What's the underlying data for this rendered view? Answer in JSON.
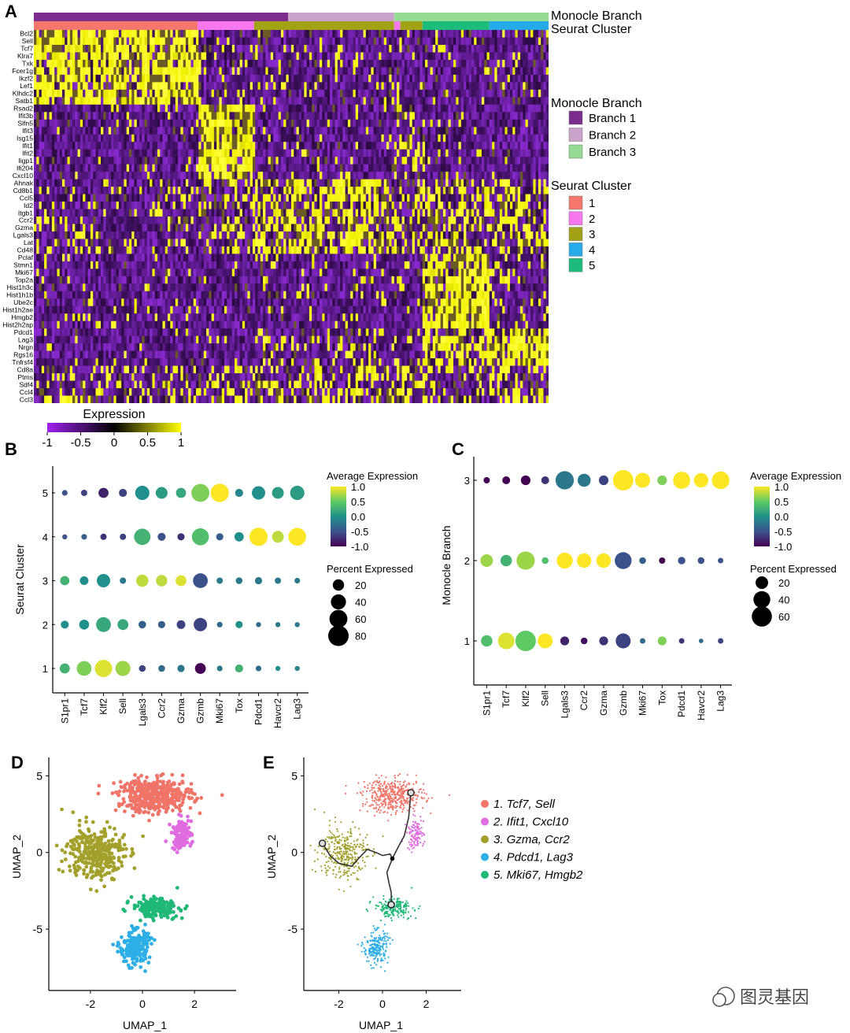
{
  "figure": {
    "panel_labels": [
      "A",
      "B",
      "C",
      "D",
      "E"
    ],
    "watermark": "图灵基因"
  },
  "colors": {
    "branch": [
      "#7c2d8e",
      "#c9a3cc",
      "#96db94"
    ],
    "cluster": [
      "#f4766d",
      "#f777ee",
      "#a2a216",
      "#26abe8",
      "#1dbc7c"
    ],
    "umap": [
      "#f07468",
      "#e06be0",
      "#a3a02c",
      "#2eaee6",
      "#20b878"
    ],
    "heat_low": "#a020f0",
    "heat_mid": "#000000",
    "heat_high": "#ffff00",
    "viridis": [
      "#440154",
      "#3b528b",
      "#21908c",
      "#5dc963",
      "#fde725"
    ]
  },
  "chart_data": [
    {
      "id": "A",
      "type": "heatmap",
      "title": "",
      "genes": [
        "Bcl2",
        "Sell",
        "Tcf7",
        "Klra7",
        "Txk",
        "Fcer1g",
        "Ikzf2",
        "Lef1",
        "Klhdc2",
        "Satb1",
        "Rsad2",
        "Ifit3b",
        "Slfn5",
        "Ifit3",
        "Isg15",
        "Ifit1",
        "Ifit2",
        "Iigp1",
        "Ifi204",
        "Cxcl10",
        "Ahnak",
        "Cd8b1",
        "Ccl5",
        "Id2",
        "Itgb1",
        "Ccr2",
        "Gzma",
        "Lgals3",
        "Lat",
        "Cd48",
        "Pclaf",
        "Stmn1",
        "Mki67",
        "Top2a",
        "Hist1h3c",
        "Hist1h1b",
        "Ube2c",
        "Hist1h2ae",
        "Hmgb2",
        "Hist2h2ap",
        "Pdcd1",
        "Lag3",
        "Nrgn",
        "Rgs16",
        "Tnfrsf4",
        "Cd8a",
        "Ptms",
        "Sdf4",
        "Ccl4",
        "Ccl3"
      ],
      "annotation_rows": [
        "Monocle Branch",
        "Seurat Cluster"
      ],
      "legend_branch_title": "Monocle Branch",
      "legend_branches": [
        "Branch 1",
        "Branch 2",
        "Branch 3"
      ],
      "legend_cluster_title": "Seurat Cluster",
      "legend_clusters": [
        "1",
        "2",
        "3",
        "4",
        "5"
      ],
      "colorbar_title": "Expression",
      "colorbar_ticks": [
        "-1",
        "-0.5",
        "0",
        "0.5",
        "1"
      ],
      "branch_segments": [
        {
          "branch": 1,
          "from": 0.0,
          "to": 0.494
        },
        {
          "branch": 2,
          "from": 0.494,
          "to": 0.7
        },
        {
          "branch": 3,
          "from": 0.7,
          "to": 1.0
        }
      ],
      "cluster_segments": [
        {
          "cluster": 1,
          "from": 0.0,
          "to": 0.318
        },
        {
          "cluster": 2,
          "from": 0.318,
          "to": 0.428
        },
        {
          "cluster": 3,
          "from": 0.428,
          "to": 0.7
        },
        {
          "cluster": 2,
          "from": 0.7,
          "to": 0.712
        },
        {
          "cluster": 3,
          "from": 0.712,
          "to": 0.755
        },
        {
          "cluster": 5,
          "from": 0.755,
          "to": 0.885
        },
        {
          "cluster": 4,
          "from": 0.885,
          "to": 1.0
        }
      ]
    },
    {
      "id": "B",
      "type": "scatter",
      "subtype": "dot-plot",
      "xlabel": "",
      "ylabel": "Seurat Cluster",
      "categories": [
        "S1pr1",
        "Tcf7",
        "Klf2",
        "Sell",
        "Lgals3",
        "Ccr2",
        "Gzma",
        "Gzmb",
        "Mki67",
        "Tox",
        "Pdcd1",
        "Havcr2",
        "Lag3"
      ],
      "groups": [
        "1",
        "2",
        "3",
        "4",
        "5"
      ],
      "avg_expression": [
        [
          0.3,
          0.6,
          0.9,
          0.7,
          -0.6,
          -0.3,
          -0.2,
          -1.0,
          -0.2,
          0.3,
          -0.3,
          0.0,
          -0.1
        ],
        [
          0.0,
          0.0,
          0.2,
          0.2,
          -0.4,
          -0.4,
          -0.6,
          -0.6,
          -0.3,
          0.0,
          -0.3,
          -0.2,
          -0.2
        ],
        [
          0.3,
          0.0,
          0.0,
          -0.2,
          0.8,
          0.8,
          0.9,
          -0.5,
          -0.2,
          -0.2,
          -0.2,
          -0.2,
          -0.2
        ],
        [
          -0.5,
          -0.4,
          -0.7,
          -0.6,
          0.3,
          -0.5,
          -0.7,
          0.4,
          -0.4,
          0.0,
          1.0,
          0.8,
          1.0
        ],
        [
          -0.5,
          -0.6,
          -0.8,
          -0.6,
          0.0,
          0.1,
          0.2,
          0.6,
          1.0,
          -0.1,
          0.0,
          0.1,
          0.1
        ]
      ],
      "pct_expressed": [
        [
          15,
          38,
          55,
          40,
          5,
          5,
          6,
          18,
          3,
          8,
          3,
          2,
          2
        ],
        [
          8,
          14,
          38,
          18,
          7,
          6,
          10,
          30,
          3,
          6,
          2,
          2,
          2
        ],
        [
          12,
          10,
          30,
          4,
          24,
          20,
          18,
          38,
          4,
          5,
          6,
          4,
          3
        ],
        [
          2,
          3,
          4,
          4,
          48,
          8,
          6,
          52,
          6,
          12,
          62,
          22,
          58
        ],
        [
          3,
          4,
          15,
          8,
          35,
          22,
          15,
          60,
          62,
          8,
          30,
          22,
          35
        ]
      ],
      "color_title": "Average Expression",
      "color_ticks": [
        "1.0",
        "0.5",
        "0.0",
        "-0.5",
        "-1.0"
      ],
      "size_title": "Percent Expressed",
      "size_ticks": [
        "20",
        "40",
        "60",
        "80"
      ],
      "color_range": [
        -1.0,
        1.0
      ]
    },
    {
      "id": "C",
      "type": "scatter",
      "subtype": "dot-plot",
      "xlabel": "",
      "ylabel": "Monocle Branch",
      "categories": [
        "S1pr1",
        "Tcf7",
        "Klf2",
        "Sell",
        "Lgals3",
        "Ccr2",
        "Gzma",
        "Gzmb",
        "Mki67",
        "Tox",
        "Pdcd1",
        "Havcr2",
        "Lag3"
      ],
      "groups": [
        "1",
        "2",
        "3"
      ],
      "avg_expression": [
        [
          0.4,
          0.9,
          0.5,
          1.0,
          -0.8,
          -0.9,
          -0.7,
          -0.6,
          -0.3,
          0.6,
          -0.7,
          -0.3,
          -0.6
        ],
        [
          0.7,
          0.3,
          0.7,
          0.4,
          1.0,
          1.0,
          1.0,
          -0.5,
          -0.4,
          -1.0,
          -0.5,
          -0.5,
          -0.5
        ],
        [
          -1.0,
          -1.0,
          -1.2,
          -0.7,
          -0.2,
          -0.2,
          -0.6,
          1.0,
          1.0,
          0.6,
          1.0,
          1.0,
          1.0
        ]
      ],
      "pct_expressed": [
        [
          16,
          38,
          62,
          30,
          8,
          4,
          8,
          30,
          2,
          8,
          2,
          1,
          2
        ],
        [
          20,
          16,
          48,
          4,
          36,
          28,
          28,
          40,
          4,
          3,
          5,
          4,
          2
        ],
        [
          3,
          6,
          10,
          6,
          48,
          22,
          10,
          62,
          30,
          10,
          42,
          28,
          44
        ]
      ],
      "color_title": "Average Expression",
      "color_ticks": [
        "1.0",
        "0.5",
        "0.0",
        "-0.5",
        "-1.0"
      ],
      "size_title": "Percent Expressed",
      "size_ticks": [
        "20",
        "40",
        "60"
      ],
      "color_range": [
        -1.0,
        1.0
      ]
    },
    {
      "id": "D",
      "type": "scatter",
      "xlabel": "UMAP_1",
      "ylabel": "UMAP_2",
      "xlim": [
        -3.6,
        3.6
      ],
      "ylim": [
        -9.0,
        6.2
      ],
      "xticks": [
        -2,
        0,
        2
      ],
      "yticks": [
        5,
        0,
        -5
      ],
      "clusters": [
        {
          "id": 1,
          "center": [
            0.5,
            3.7
          ],
          "spread": [
            1.3,
            1.0
          ],
          "count": 420
        },
        {
          "id": 2,
          "center": [
            1.5,
            1.2
          ],
          "spread": [
            0.35,
            0.9
          ],
          "count": 110
        },
        {
          "id": 3,
          "center": [
            -1.8,
            0.0
          ],
          "spread": [
            1.0,
            1.6
          ],
          "count": 330
        },
        {
          "id": 4,
          "center": [
            -0.3,
            -6.2
          ],
          "spread": [
            0.5,
            1.0
          ],
          "count": 210
        },
        {
          "id": 5,
          "center": [
            0.5,
            -3.6
          ],
          "spread": [
            0.8,
            0.55
          ],
          "count": 210
        }
      ]
    },
    {
      "id": "E",
      "type": "scatter",
      "subtype": "trajectory",
      "xlabel": "UMAP_1",
      "ylabel": "UMAP_2",
      "xlim": [
        -3.6,
        3.6
      ],
      "ylim": [
        -9.0,
        6.2
      ],
      "xticks": [
        -2,
        0,
        2
      ],
      "yticks": [
        5,
        0,
        -5
      ],
      "legend": [
        "1. Tcf7, Sell",
        "2. Ifit1, Cxcl10",
        "3. Gzma, Ccr2",
        "4. Pdcd1, Lag3",
        "5. Mki67, Hmgb2"
      ],
      "trajectory": [
        [
          -2.75,
          0.6
        ],
        [
          -2.4,
          -0.2
        ],
        [
          -2.0,
          -0.7
        ],
        [
          -1.4,
          -0.9
        ],
        [
          -1.1,
          -0.4
        ],
        [
          -0.7,
          0.2
        ],
        [
          -0.3,
          0.0
        ],
        [
          0.0,
          -0.2
        ],
        [
          0.35,
          -0.1
        ],
        [
          0.45,
          -0.4
        ],
        [
          0.7,
          0.3
        ],
        [
          1.0,
          1.1
        ],
        [
          1.2,
          2.3
        ],
        [
          1.3,
          3.9
        ]
      ],
      "trajectory_branch": [
        [
          0.45,
          -0.4
        ],
        [
          0.2,
          -1.3
        ],
        [
          0.3,
          -2.0
        ],
        [
          0.4,
          -2.6
        ],
        [
          0.4,
          -3.4
        ]
      ],
      "nodes": [
        [
          -2.75,
          0.6
        ],
        [
          1.3,
          3.9
        ],
        [
          0.4,
          -3.4
        ]
      ],
      "branch_point": [
        0.45,
        -0.4
      ]
    }
  ]
}
